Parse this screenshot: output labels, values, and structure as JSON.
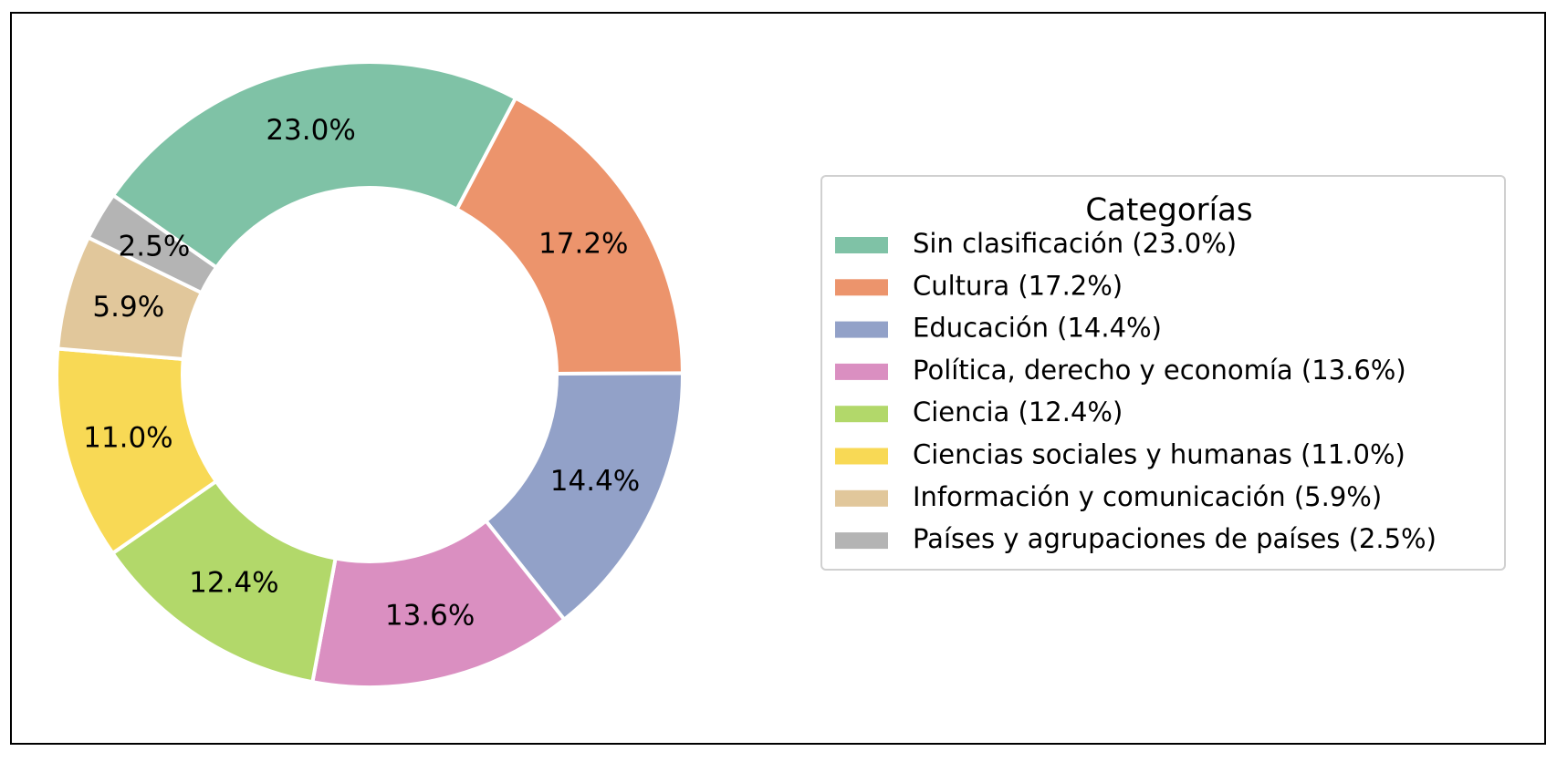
{
  "chart_data": {
    "type": "pie",
    "donut": true,
    "start_angle_deg": 145,
    "direction": "clockwise",
    "slices": [
      {
        "category": "Sin clasificación",
        "value": 23.0,
        "pct_label": "23.0%",
        "color": "#7fc2a6"
      },
      {
        "category": "Cultura",
        "value": 17.2,
        "pct_label": "17.2%",
        "color": "#ec946c"
      },
      {
        "category": "Educación",
        "value": 14.4,
        "pct_label": "14.4%",
        "color": "#92a1c8"
      },
      {
        "category": "Política, derecho y economía",
        "value": 13.6,
        "pct_label": "13.6%",
        "color": "#da8fc1"
      },
      {
        "category": "Ciencia",
        "value": 12.4,
        "pct_label": "12.4%",
        "color": "#b2d86a"
      },
      {
        "category": "Ciencias sociales y humanas",
        "value": 11.0,
        "pct_label": "11.0%",
        "color": "#f8d955"
      },
      {
        "category": "Información y comunicación",
        "value": 5.9,
        "pct_label": "5.9%",
        "color": "#e1c79b"
      },
      {
        "category": "Países y agrupaciones de países",
        "value": 2.5,
        "pct_label": "2.5%",
        "color": "#b4b4b4"
      }
    ],
    "legend": {
      "title": "Categorías",
      "placement": "right",
      "entries": [
        "Sin clasificación (23.0%)",
        "Cultura (17.2%)",
        "Educación (14.4%)",
        "Política, derecho y economía (13.6%)",
        "Ciencia (12.4%)",
        "Ciencias sociales y humanas (11.0%)",
        "Información y comunicación (5.9%)",
        "Países y agrupaciones de países (2.5%)"
      ]
    }
  }
}
